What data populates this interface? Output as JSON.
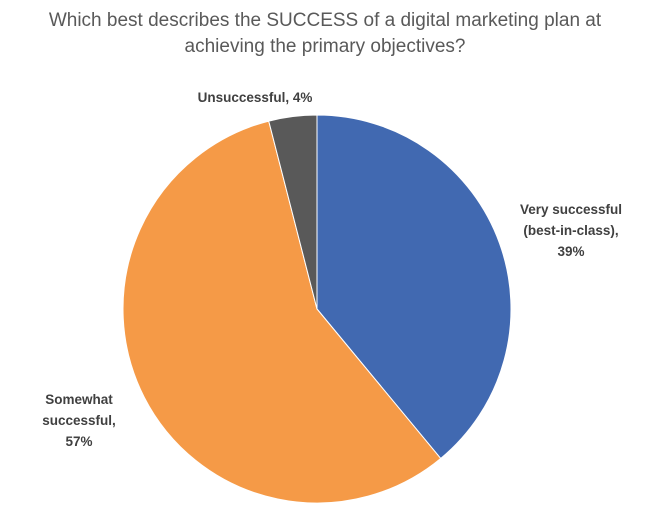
{
  "chart_data": {
    "type": "pie",
    "title_lines": [
      "Which best describes the SUCCESS of a digital marketing plan at",
      "achieving the primary objectives?"
    ],
    "slices": [
      {
        "label_lines": [
          "Very successful",
          "(best-in-class),",
          "39%"
        ],
        "value": 39,
        "color": "#4169B1"
      },
      {
        "label_lines": [
          "Somewhat",
          "successful,",
          "57%"
        ],
        "value": 57,
        "color": "#F59A47"
      },
      {
        "label_lines": [
          "Unsuccessful, 4%"
        ],
        "value": 4,
        "color": "#595959"
      }
    ],
    "start_angle": "12 o'clock",
    "direction": "clockwise",
    "legend": "none"
  }
}
